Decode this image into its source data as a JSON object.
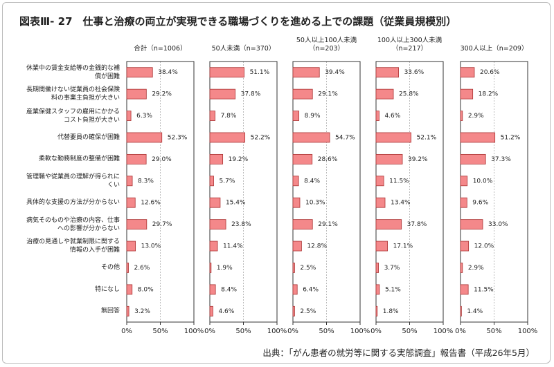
{
  "chart_data": {
    "type": "bar",
    "orientation": "horizontal",
    "title": "図表Ⅲ- 27　仕事と治療の両立が実現できる職場づくりを進める上での課題（従業員規模別）",
    "source": "出典：「がん患者の就労等に関する実態調査」報告書（平成26年5月）",
    "categories": [
      "休業中の賃金支給等の金銭的な補\n償が困難",
      "長期間働けない従業員の社会保険\n料の事業主負担が大きい",
      "産業保健スタッフの雇用にかかる\nコスト負担が大きい",
      "代替要員の確保が困難",
      "柔軟な勤務制度の整備が困難",
      "管理職や従業員の理解が得られに\nくい",
      "具体的な支援の方法が分からない",
      "病気そのものや治療の内容、仕事\nへの影響が分からない",
      "治療の見通しや就業制限に関する\n情報の入手が困難",
      "その他",
      "特になし",
      "無回答"
    ],
    "series": [
      {
        "name": "合計（n=1006）",
        "color": "#f4888a",
        "values": [
          38.4,
          29.2,
          6.3,
          52.3,
          29.0,
          8.3,
          12.6,
          29.7,
          13.0,
          2.6,
          8.0,
          3.2
        ],
        "value_labels": [
          "38.4%",
          "29.2%",
          "6.3%",
          "52.3%",
          "29.0%",
          "8.3%",
          "12.6%",
          "29.7%",
          "13.0%",
          "2.6%",
          "8.0%",
          "3.2%"
        ]
      },
      {
        "name": "50人未満（n=370）",
        "color": "#f4888a",
        "values": [
          51.1,
          37.8,
          7.8,
          52.2,
          19.2,
          5.7,
          15.4,
          23.8,
          11.4,
          1.9,
          8.4,
          4.6
        ],
        "value_labels": [
          "51.1%",
          "37.8%",
          "7.8%",
          "52.2%",
          "19.2%",
          "5.7%",
          "15.4%",
          "23.8%",
          "11.4%",
          "1.9%",
          "8.4%",
          "4.6%"
        ]
      },
      {
        "name": "50人以上100人未満\n（n=203）",
        "color": "#f4888a",
        "values": [
          39.4,
          29.1,
          8.9,
          54.7,
          28.6,
          8.4,
          10.3,
          29.1,
          12.8,
          2.5,
          6.4,
          2.5
        ],
        "value_labels": [
          "39.4%",
          "29.1%",
          "8.9%",
          "54.7%",
          "28.6%",
          "8.4%",
          "10.3%",
          "29.1%",
          "12.8%",
          "2.5%",
          "6.4%",
          "2.5%"
        ]
      },
      {
        "name": "100人以上300人未満\n（n=217）",
        "color": "#f4888a",
        "values": [
          33.6,
          25.8,
          4.6,
          52.1,
          39.2,
          11.5,
          13.4,
          37.8,
          17.1,
          3.7,
          5.1,
          1.8
        ],
        "value_labels": [
          "33.6%",
          "25.8%",
          "4.6%",
          "52.1%",
          "39.2%",
          "11.5%",
          "13.4%",
          "37.8%",
          "17.1%",
          "3.7%",
          "5.1%",
          "1.8%"
        ]
      },
      {
        "name": "300人以上（n=209）",
        "color": "#f4888a",
        "values": [
          20.6,
          18.2,
          2.9,
          51.2,
          37.3,
          10.0,
          9.6,
          33.0,
          12.0,
          2.9,
          11.5,
          1.4
        ],
        "value_labels": [
          "20.6%",
          "18.2%",
          "2.9%",
          "51.2%",
          "37.3%",
          "10.0%",
          "9.6%",
          "33.0%",
          "12.0%",
          "2.9%",
          "11.5%",
          "1.4%"
        ]
      }
    ],
    "xlim": [
      0,
      100
    ],
    "xticks": [
      {
        "value": 0,
        "label": "0%"
      },
      {
        "value": 50,
        "label": "50%"
      },
      {
        "value": 100,
        "label": "100%"
      }
    ],
    "grid": true
  }
}
